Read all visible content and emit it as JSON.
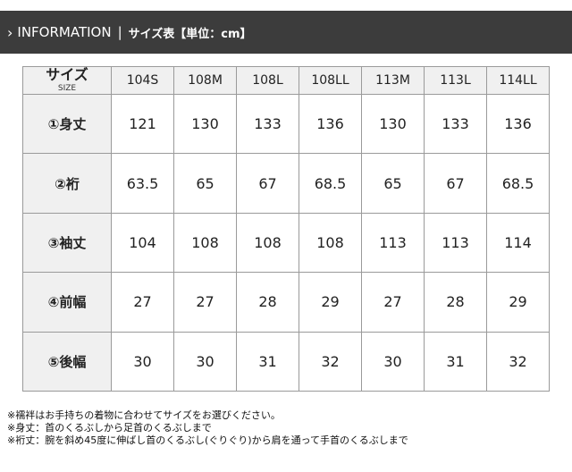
{
  "header": {
    "chevron": "›",
    "title": "INFORMATION",
    "separator": "|",
    "subtitle": "サイズ表【単位：cm】"
  },
  "table": {
    "corner_label": "サイズ",
    "corner_sublabel": "SIZE",
    "columns": [
      "104S",
      "108M",
      "108L",
      "108LL",
      "113M",
      "113L",
      "114LL"
    ],
    "rows": [
      {
        "label": "①身丈",
        "values": [
          "121",
          "130",
          "133",
          "136",
          "130",
          "133",
          "136"
        ]
      },
      {
        "label": "②裄",
        "values": [
          "63.5",
          "65",
          "67",
          "68.5",
          "65",
          "67",
          "68.5"
        ]
      },
      {
        "label": "③袖丈",
        "values": [
          "104",
          "108",
          "108",
          "108",
          "113",
          "113",
          "114"
        ]
      },
      {
        "label": "④前幅",
        "values": [
          "27",
          "27",
          "28",
          "29",
          "27",
          "28",
          "29"
        ]
      },
      {
        "label": "⑤後幅",
        "values": [
          "30",
          "30",
          "31",
          "32",
          "30",
          "31",
          "32"
        ]
      }
    ]
  },
  "notes": [
    "※襦袢はお手持ちの着物に合わせてサイズをお選びください。",
    "※身丈：首のくるぶしから足首のくるぶしまで",
    "※裄丈：腕を斜め45度に伸ばし首のくるぶし(ぐりぐり)から肩を通って手首のくるぶしまで"
  ]
}
